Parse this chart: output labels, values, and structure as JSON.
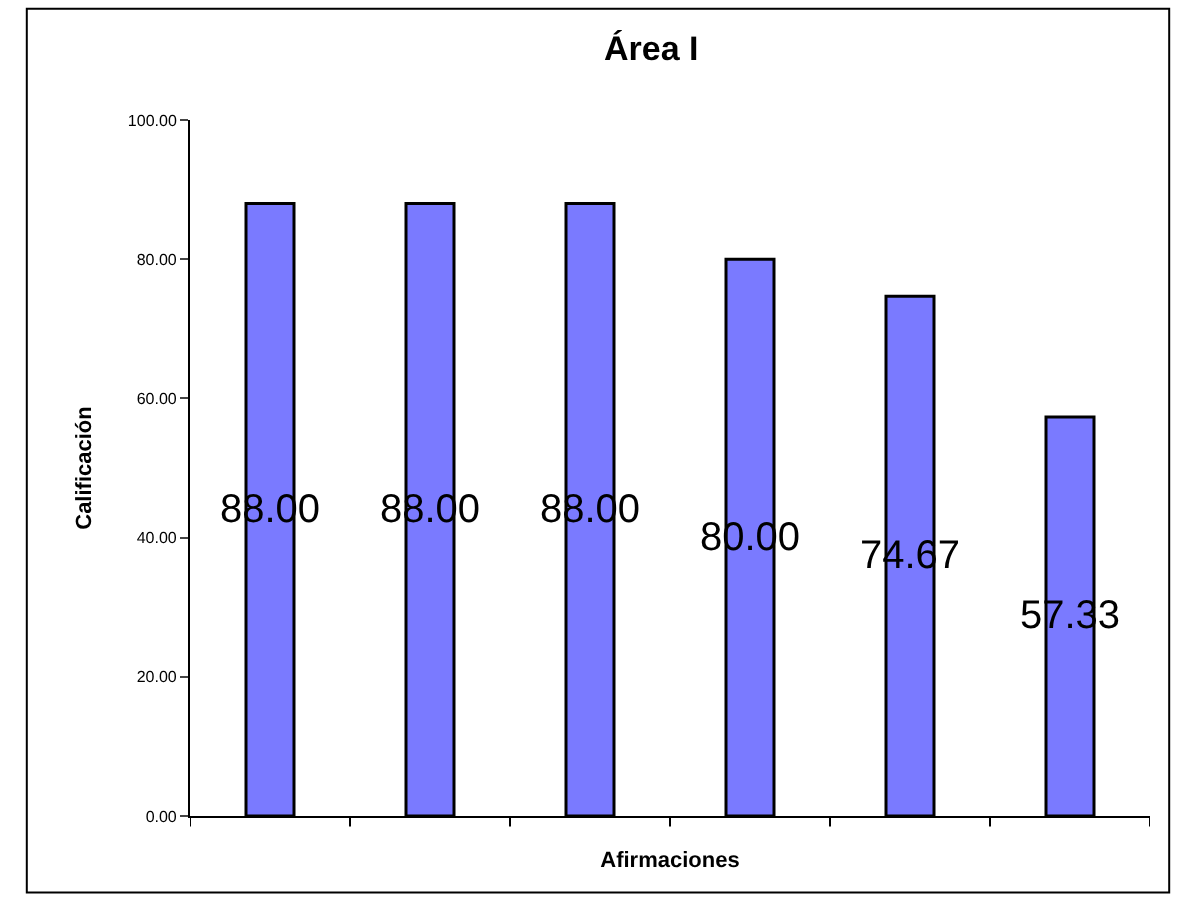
{
  "chart_data": {
    "type": "bar",
    "title": "Área I",
    "xlabel": "Afirmaciones",
    "ylabel": "Calificación",
    "categories": [
      null,
      null,
      null,
      null,
      null,
      null
    ],
    "values": [
      88.0,
      88.0,
      88.0,
      80.0,
      74.67,
      57.33
    ],
    "value_labels": [
      "88.00",
      "88.00",
      "88.00",
      "80.00",
      "74.67",
      "57.33"
    ],
    "color": "#7a7aff",
    "ylim": [
      0,
      100
    ],
    "yticks": [
      {
        "value": 0,
        "label": "0.00"
      },
      {
        "value": 20,
        "label": "20.00"
      },
      {
        "value": 40,
        "label": "40.00"
      },
      {
        "value": 60,
        "label": "60.00"
      },
      {
        "value": 80,
        "label": "80.00"
      },
      {
        "value": 100,
        "label": "100.00"
      }
    ]
  }
}
